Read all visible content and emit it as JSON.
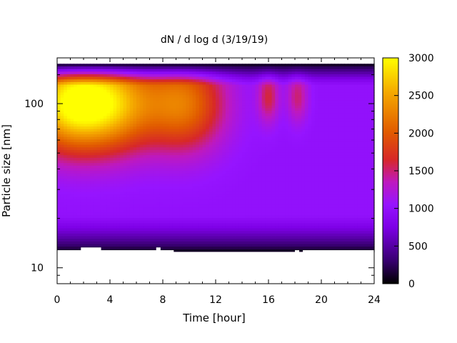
{
  "chart_data": {
    "type": "heatmap",
    "title": "dN / d log d (3/19/19)",
    "xlabel": "Time [hour]",
    "ylabel": "Particle size [nm]",
    "xlim": [
      0,
      24
    ],
    "x_ticks": [
      0,
      4,
      8,
      12,
      16,
      20,
      24
    ],
    "y_scale": "log",
    "ylim": [
      8,
      190
    ],
    "y_ticks": [
      10,
      100
    ],
    "data_y_range": [
      12.5,
      175
    ],
    "colorbar": {
      "range": [
        0,
        3000
      ],
      "ticks": [
        0,
        500,
        1000,
        1500,
        2000,
        2500,
        3000
      ],
      "palette": "black-purple-red-orange-yellow"
    },
    "modes": [
      {
        "t": 0.7,
        "d": 100,
        "value": 2700
      },
      {
        "t": 4.2,
        "d": 100,
        "value": 2450
      },
      {
        "t": 9.5,
        "d": 100,
        "value": 2200
      },
      {
        "t": 16.0,
        "d": 110,
        "value": 1600
      },
      {
        "t": 18.2,
        "d": 110,
        "value": 1500
      }
    ],
    "background_level": 1000,
    "low_size_cutoff_nm": [
      {
        "t": 0,
        "d": 12.8
      },
      {
        "t": 1.8,
        "d": 13.3
      },
      {
        "t": 3.3,
        "d": 12.8
      },
      {
        "t": 7.5,
        "d": 13.3
      },
      {
        "t": 7.8,
        "d": 12.8
      },
      {
        "t": 8.8,
        "d": 12.3
      },
      {
        "t": 18.0,
        "d": 12.8
      },
      {
        "t": 18.3,
        "d": 12.3
      },
      {
        "t": 18.6,
        "d": 12.8
      },
      {
        "t": 24,
        "d": 12.8
      }
    ]
  }
}
